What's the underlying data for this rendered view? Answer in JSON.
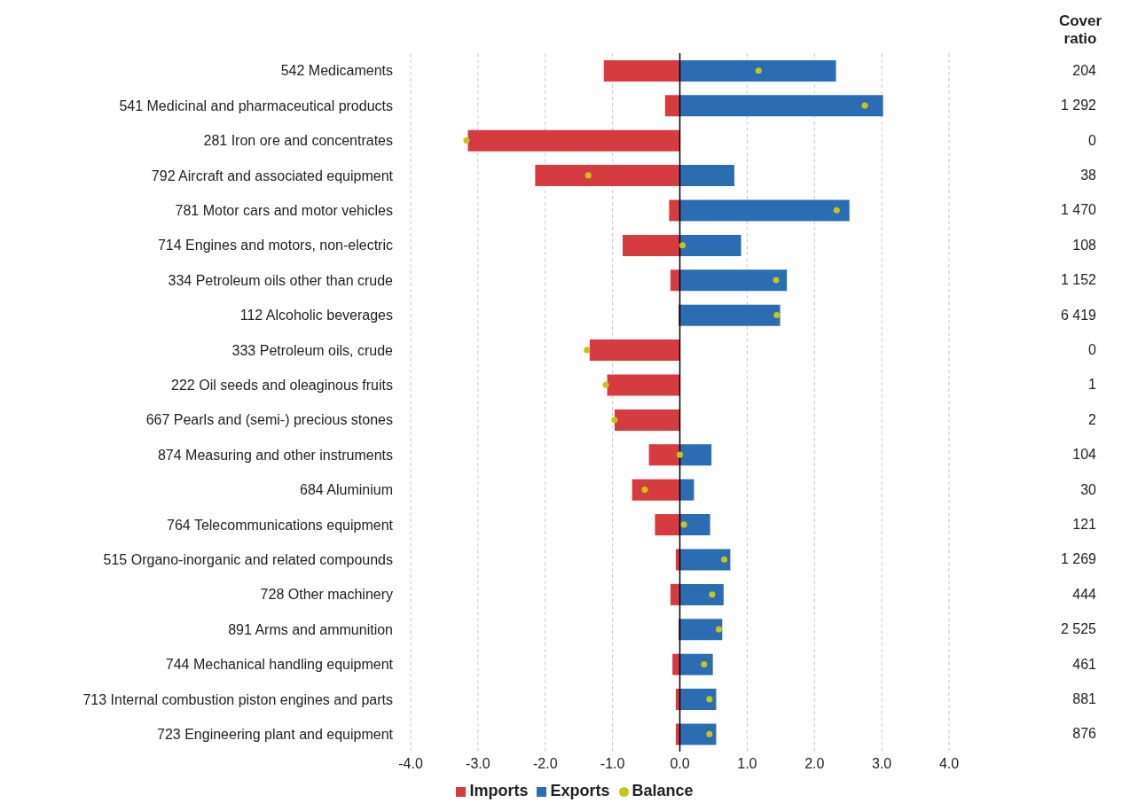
{
  "chart_data": {
    "type": "bar",
    "orientation": "horizontal",
    "stacked": true,
    "categories": [
      "542 Medicaments",
      "541 Medicinal and pharmaceutical products",
      "281 Iron ore and concentrates",
      "792 Aircraft and associated equipment",
      "781 Motor cars and motor vehicles",
      "714 Engines and motors, non-electric",
      "334 Petroleum oils other than crude",
      "112 Alcoholic beverages",
      "333 Petroleum oils, crude",
      "222 Oil seeds and oleaginous fruits",
      "667 Pearls and (semi-) precious stones",
      "874 Measuring and other instruments",
      "684 Aluminium",
      "764 Telecommunications equipment",
      "515 Organo-inorganic and related compounds",
      "728 Other machinery",
      "891 Arms and ammunition",
      "744 Mechanical handling equipment",
      "713 Internal combustion piston engines and parts",
      "723 Engineering plant and equipment"
    ],
    "series": [
      {
        "name": "Imports",
        "type": "bar",
        "color": "#d63b40",
        "values": [
          -1.13,
          -0.22,
          -3.15,
          -2.15,
          -0.16,
          -0.85,
          -0.14,
          -0.02,
          -1.34,
          -1.08,
          -0.97,
          -0.46,
          -0.71,
          -0.37,
          -0.06,
          -0.14,
          -0.02,
          -0.11,
          -0.06,
          -0.06
        ]
      },
      {
        "name": "Exports",
        "type": "bar",
        "color": "#2a6db3",
        "values": [
          2.32,
          3.02,
          0,
          0.81,
          2.52,
          0.91,
          1.59,
          1.49,
          0,
          0,
          0,
          0.47,
          0.21,
          0.45,
          0.75,
          0.65,
          0.63,
          0.49,
          0.54,
          0.54
        ]
      },
      {
        "name": "Balance",
        "type": "scatter",
        "color": "#c3c41c",
        "marker": "circle",
        "values": [
          1.17,
          2.75,
          -3.17,
          -1.36,
          2.33,
          0.04,
          1.43,
          1.44,
          -1.38,
          -1.1,
          -0.97,
          0.0,
          -0.52,
          0.06,
          0.66,
          0.48,
          0.58,
          0.36,
          0.44,
          0.44
        ]
      }
    ],
    "xlim": [
      -4,
      4
    ],
    "xticks": [
      {
        "value": -4,
        "label": "-4.0"
      },
      {
        "value": -3,
        "label": "-3.0"
      },
      {
        "value": -2,
        "label": "-2.0"
      },
      {
        "value": -1,
        "label": "-1.0"
      },
      {
        "value": 0,
        "label": "0.0"
      },
      {
        "value": 1,
        "label": "1.0"
      },
      {
        "value": 2,
        "label": "2.0"
      },
      {
        "value": 3,
        "label": "3.0"
      },
      {
        "value": 4,
        "label": "4.0"
      }
    ],
    "grid": "x",
    "legend": "bottom",
    "ref_lines": [
      {
        "axis": "x",
        "value": 0,
        "color": "#000000"
      }
    ],
    "annotations": [
      "Cover ratio",
      "204",
      "1 292",
      "0",
      "38",
      "1 470",
      "108",
      "1 152",
      "6 419",
      "0",
      "1",
      "2",
      "104",
      "30",
      "121",
      "1 269",
      "444",
      "2 525",
      "461",
      "881",
      "876"
    ]
  }
}
